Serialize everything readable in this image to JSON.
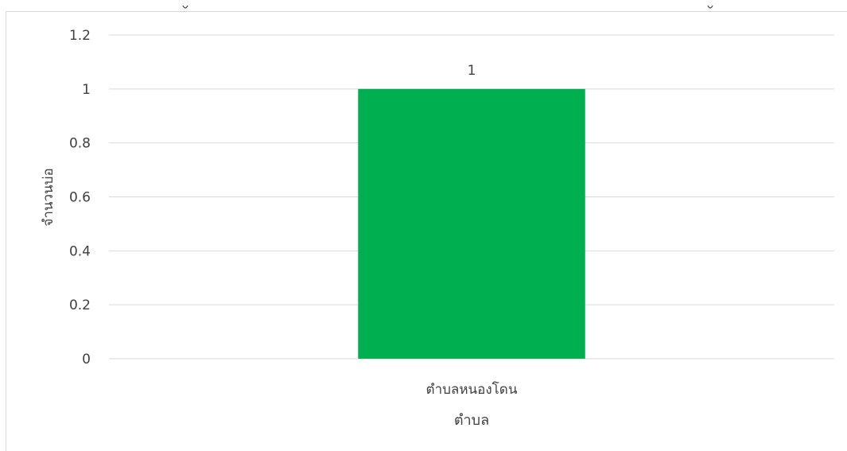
{
  "chart_data": {
    "type": "bar",
    "title": "",
    "categories": [
      "ตำบลหนองโดน"
    ],
    "values": [
      1
    ],
    "data_labels": [
      "1"
    ],
    "xlabel": "ตำบล",
    "ylabel": "จำนวนบ่อ",
    "ylim": [
      0,
      1.2
    ],
    "yticks": [
      "0",
      "0.2",
      "0.4",
      "0.6",
      "0.8",
      "1",
      "1.2"
    ],
    "grid": true,
    "legend": "none",
    "colors": {
      "bar": "#00b050",
      "grid": "#d9d9d9",
      "text": "#404040"
    }
  }
}
